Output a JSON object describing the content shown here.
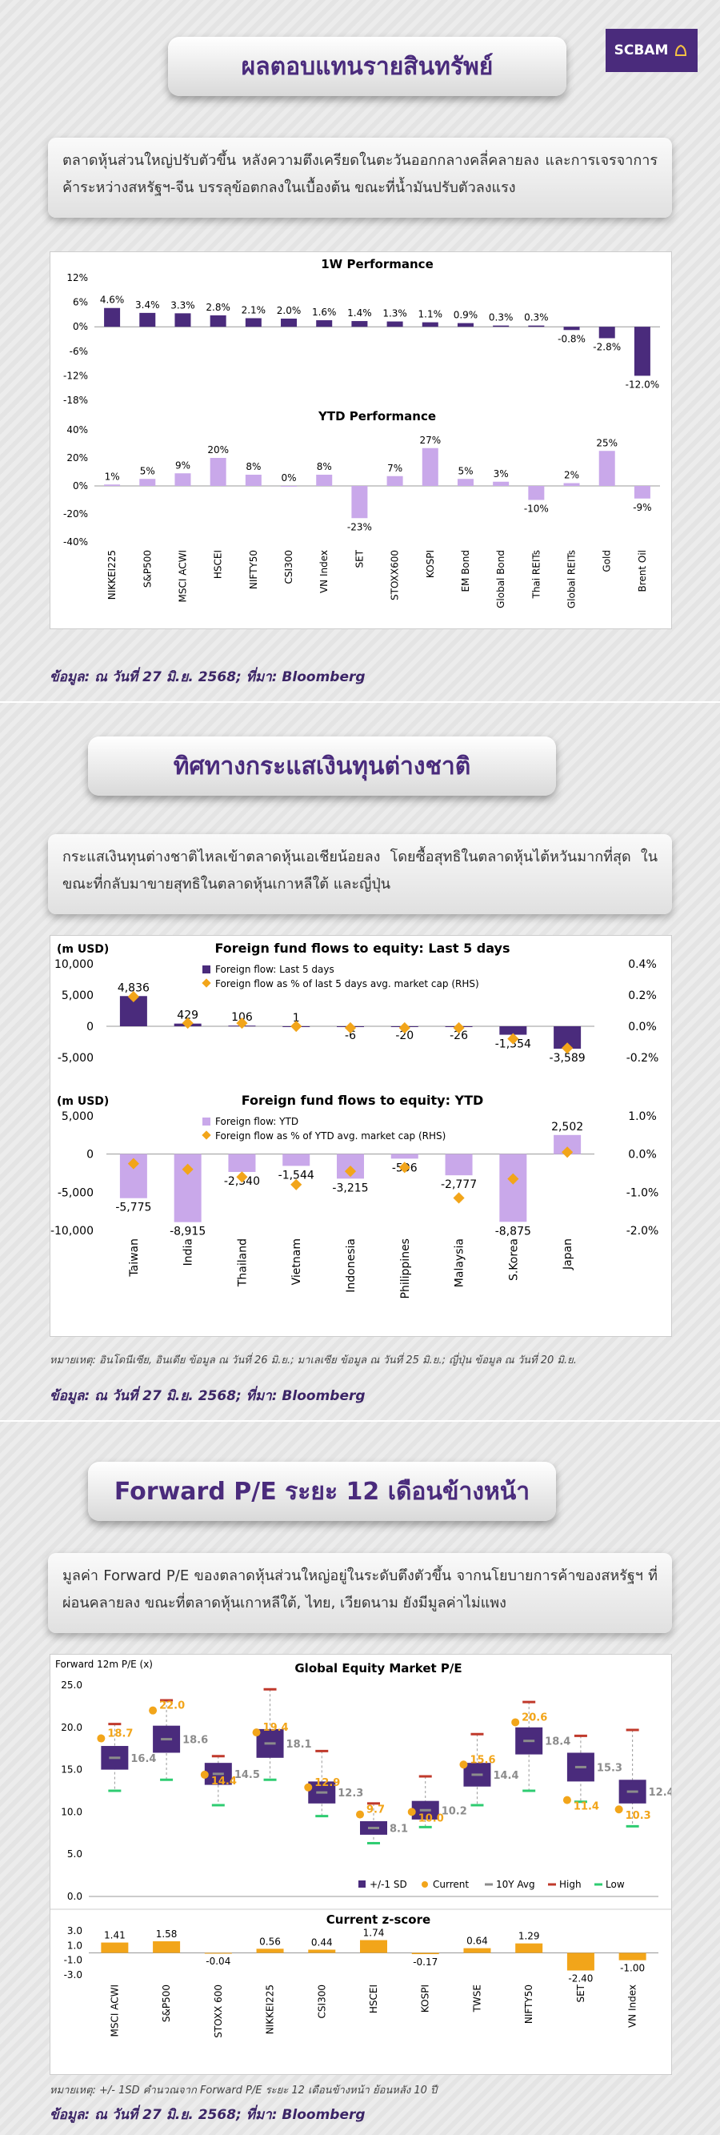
{
  "brand": {
    "logo_text": "SCBAM"
  },
  "sections": {
    "s1_title": "ผลตอบแทนรายสินทรัพย์",
    "s1_desc": "ตลาดหุ้นส่วนใหญ่ปรับตัวขึ้น หลังความตึงเครียดในตะวันออกกลางคลี่คลายลง และการเจรจาการค้าระหว่างสหรัฐฯ-จีน บรรลุข้อตกลงในเบื้องต้น ขณะที่น้ำมันปรับตัวลงแรง",
    "s1_source": "ข้อมูล: ณ วันที่ 27 มิ.ย. 2568; ที่มา: Bloomberg",
    "s2_title": "ทิศทางกระแสเงินทุนต่างชาติ",
    "s2_desc": "กระแสเงินทุนต่างชาติไหลเข้าตลาดหุ้นเอเชียน้อยลง โดยซื้อสุทธิในตลาดหุ้นไต้หวันมากที่สุด ในขณะที่กลับมาขายสุทธิในตลาดหุ้นเกาหลีใต้ และญี่ปุ่น",
    "s2_note": "หมายเหตุ: อินโดนีเซีย, อินเดีย ข้อมูล ณ วันที่ 26 มิ.ย.; มาเลเซีย ข้อมูล ณ วันที่ 25 มิ.ย.; ญี่ปุ่น ข้อมูล ณ วันที่ 20 มิ.ย.",
    "s2_source": "ข้อมูล: ณ วันที่ 27 มิ.ย. 2568; ที่มา: Bloomberg",
    "s3_title": "Forward P/E ระยะ 12 เดือนข้างหน้า",
    "s3_desc": "มูลค่า Forward P/E ของตลาดหุ้นส่วนใหญ่อยู่ในระดับตึงตัวขึ้น จากนโยบายการค้าของสหรัฐฯ ที่ผ่อนคลายลง ขณะที่ตลาดหุ้นเกาหลีใต้, ไทย, เวียดนาม ยังมีมูลค่าไม่แพง",
    "s3_note": "หมายเหตุ: +/- 1SD คำนวณจาก Forward P/E ระยะ 12 เดือนข้างหน้า ย้อนหลัง 10 ปี",
    "s3_source": "ข้อมูล: ณ วันที่ 27 มิ.ย. 2568; ที่มา: Bloomberg"
  },
  "colors": {
    "purple": "#4a2b7c",
    "light_purple": "#c9a8ea",
    "orange": "#f2a51a",
    "gray": "#8c8c8c",
    "red": "#c0392b",
    "green": "#2ecc71"
  },
  "chart_data": [
    {
      "id": "perf",
      "type": "bar",
      "categories": [
        "NIKKEI225",
        "S&P500",
        "MSCI ACWI",
        "HSCEI",
        "NIFTY50",
        "CSI300",
        "VN Index",
        "SET",
        "STOXX600",
        "KOSPI",
        "EM Bond",
        "Global Bond",
        "Thai REITs",
        "Global REITs",
        "Gold",
        "Brent Oil"
      ],
      "panels": [
        {
          "title": "1W Performance",
          "unit": "%",
          "values": [
            4.6,
            3.4,
            3.3,
            2.8,
            2.1,
            2.0,
            1.6,
            1.4,
            1.3,
            1.1,
            0.9,
            0.3,
            0.3,
            -0.8,
            -2.8,
            -12.0
          ],
          "labels": [
            "4.6%",
            "3.4%",
            "3.3%",
            "2.8%",
            "2.1%",
            "2.0%",
            "1.6%",
            "1.4%",
            "1.3%",
            "1.1%",
            "0.9%",
            "0.3%",
            "0.3%",
            "-0.8%",
            "-2.8%",
            "-12.0%"
          ],
          "ylim": [
            -18,
            12
          ],
          "ticks": [
            "12%",
            "6%",
            "0%",
            "-6%",
            "-12%",
            "-18%"
          ],
          "color": "#4a2b7c"
        },
        {
          "title": "YTD Performance",
          "unit": "%",
          "values": [
            1,
            5,
            9,
            20,
            8,
            0,
            8,
            -23,
            7,
            27,
            5,
            3,
            -10,
            2,
            25,
            -9
          ],
          "labels": [
            "1%",
            "5%",
            "9%",
            "20%",
            "8%",
            "0%",
            "8%",
            "-23%",
            "7%",
            "27%",
            "5%",
            "3%",
            "-10%",
            "2%",
            "25%",
            "-9%"
          ],
          "ylim": [
            -40,
            40
          ],
          "ticks": [
            "40%",
            "20%",
            "0%",
            "-20%",
            "-40%"
          ],
          "color": "#c9a8ea"
        }
      ]
    },
    {
      "id": "flows",
      "type": "bar",
      "categories": [
        "Taiwan",
        "India",
        "Thailand",
        "Vietnam",
        "Indonesia",
        "Philippines",
        "Malaysia",
        "S.Korea",
        "Japan"
      ],
      "panels": [
        {
          "title": "Foreign fund flows to equity: Last 5 days",
          "ylabel": "(m USD)",
          "series": [
            {
              "name": "Foreign flow: Last 5 days",
              "values": [
                4836,
                429,
                106,
                1,
                -6,
                -20,
                -26,
                -1354,
                -3589
              ]
            },
            {
              "name": "Foreign flow as % of last 5 days avg. market cap (RHS)",
              "values": [
                0.19,
                0.02,
                0.02,
                0.0,
                -0.01,
                -0.01,
                -0.01,
                -0.08,
                -0.14
              ]
            }
          ],
          "labels": [
            "4,836",
            "429",
            "106",
            "1",
            "-6",
            "-20",
            "-26",
            "-1,354",
            "-3,589"
          ],
          "ylim": [
            -5000,
            10000
          ],
          "ticks_left": [
            "10,000",
            "5,000",
            "0",
            "-5,000"
          ],
          "y2lim": [
            -0.2,
            0.4
          ],
          "ticks_right": [
            "0.4%",
            "0.2%",
            "0.0%",
            "-0.2%"
          ]
        },
        {
          "title": "Foreign fund flows to equity: YTD",
          "ylabel": "(m USD)",
          "series": [
            {
              "name": "Foreign flow: YTD",
              "values": [
                -5775,
                -8915,
                -2340,
                -1544,
                -3215,
                -596,
                -2777,
                -8875,
                2502
              ]
            },
            {
              "name": "Foreign flow as % of YTD avg. market cap (RHS)",
              "values": [
                -0.25,
                -0.4,
                -0.6,
                -0.8,
                -0.45,
                -0.35,
                -1.15,
                -0.65,
                0.05
              ]
            }
          ],
          "labels": [
            "-5,775",
            "-8,915",
            "-2,340",
            "-1,544",
            "-3,215",
            "-596",
            "-2,777",
            "-8,875",
            "2,502"
          ],
          "ylim": [
            -10000,
            5000
          ],
          "ticks_left": [
            "5,000",
            "0",
            "-5,000",
            "-10,000"
          ],
          "y2lim": [
            -2.0,
            1.0
          ],
          "ticks_right": [
            "1.0%",
            "0.0%",
            "-1.0%",
            "-2.0%"
          ]
        }
      ]
    },
    {
      "id": "pe",
      "type": "box",
      "title": "Global Equity Market P/E",
      "ylabel": "Forward 12m P/E (x)",
      "categories": [
        "MSCI ACWI",
        "S&P500",
        "STOXX 600",
        "NIKKEI225",
        "CSI300",
        "HSCEI",
        "KOSPI",
        "TWSE",
        "NIFTY50",
        "SET",
        "VN Index"
      ],
      "avg": [
        16.4,
        18.6,
        14.5,
        18.1,
        12.3,
        8.1,
        10.2,
        14.4,
        18.4,
        15.3,
        12.4
      ],
      "current": [
        18.7,
        22.0,
        14.4,
        19.4,
        12.9,
        9.7,
        10.0,
        15.6,
        20.6,
        11.4,
        10.3
      ],
      "sd_low": [
        15.0,
        17.0,
        13.2,
        16.4,
        11.0,
        7.3,
        9.1,
        13.0,
        16.8,
        13.6,
        11.0
      ],
      "sd_high": [
        17.8,
        20.2,
        15.8,
        19.8,
        13.6,
        8.9,
        11.3,
        15.8,
        20.0,
        17.0,
        13.8
      ],
      "high": [
        20.4,
        23.2,
        16.6,
        24.5,
        17.2,
        11.0,
        14.2,
        19.2,
        23.0,
        19.0,
        19.7
      ],
      "low": [
        12.5,
        13.8,
        10.8,
        13.8,
        9.5,
        6.3,
        8.2,
        10.8,
        12.5,
        11.2,
        8.3
      ],
      "ylim": [
        0,
        25
      ],
      "ticks": [
        "25.0",
        "20.0",
        "15.0",
        "10.0",
        "5.0",
        "0.0"
      ],
      "legend": [
        "+/-1 SD",
        "Current",
        "10Y Avg",
        "High",
        "Low"
      ],
      "zscore": {
        "title": "Current z-score",
        "values": [
          1.41,
          1.58,
          -0.04,
          0.56,
          0.44,
          1.74,
          -0.17,
          0.64,
          1.29,
          -2.4,
          -1.0
        ],
        "labels": [
          "1.41",
          "1.58",
          "-0.04",
          "0.56",
          "0.44",
          "1.74",
          "-0.17",
          "0.64",
          "1.29",
          "-2.40",
          "-1.00"
        ],
        "ylim": [
          -3,
          3
        ],
        "ticks": [
          "3.0",
          "1.0",
          "-1.0",
          "-3.0"
        ]
      }
    }
  ]
}
